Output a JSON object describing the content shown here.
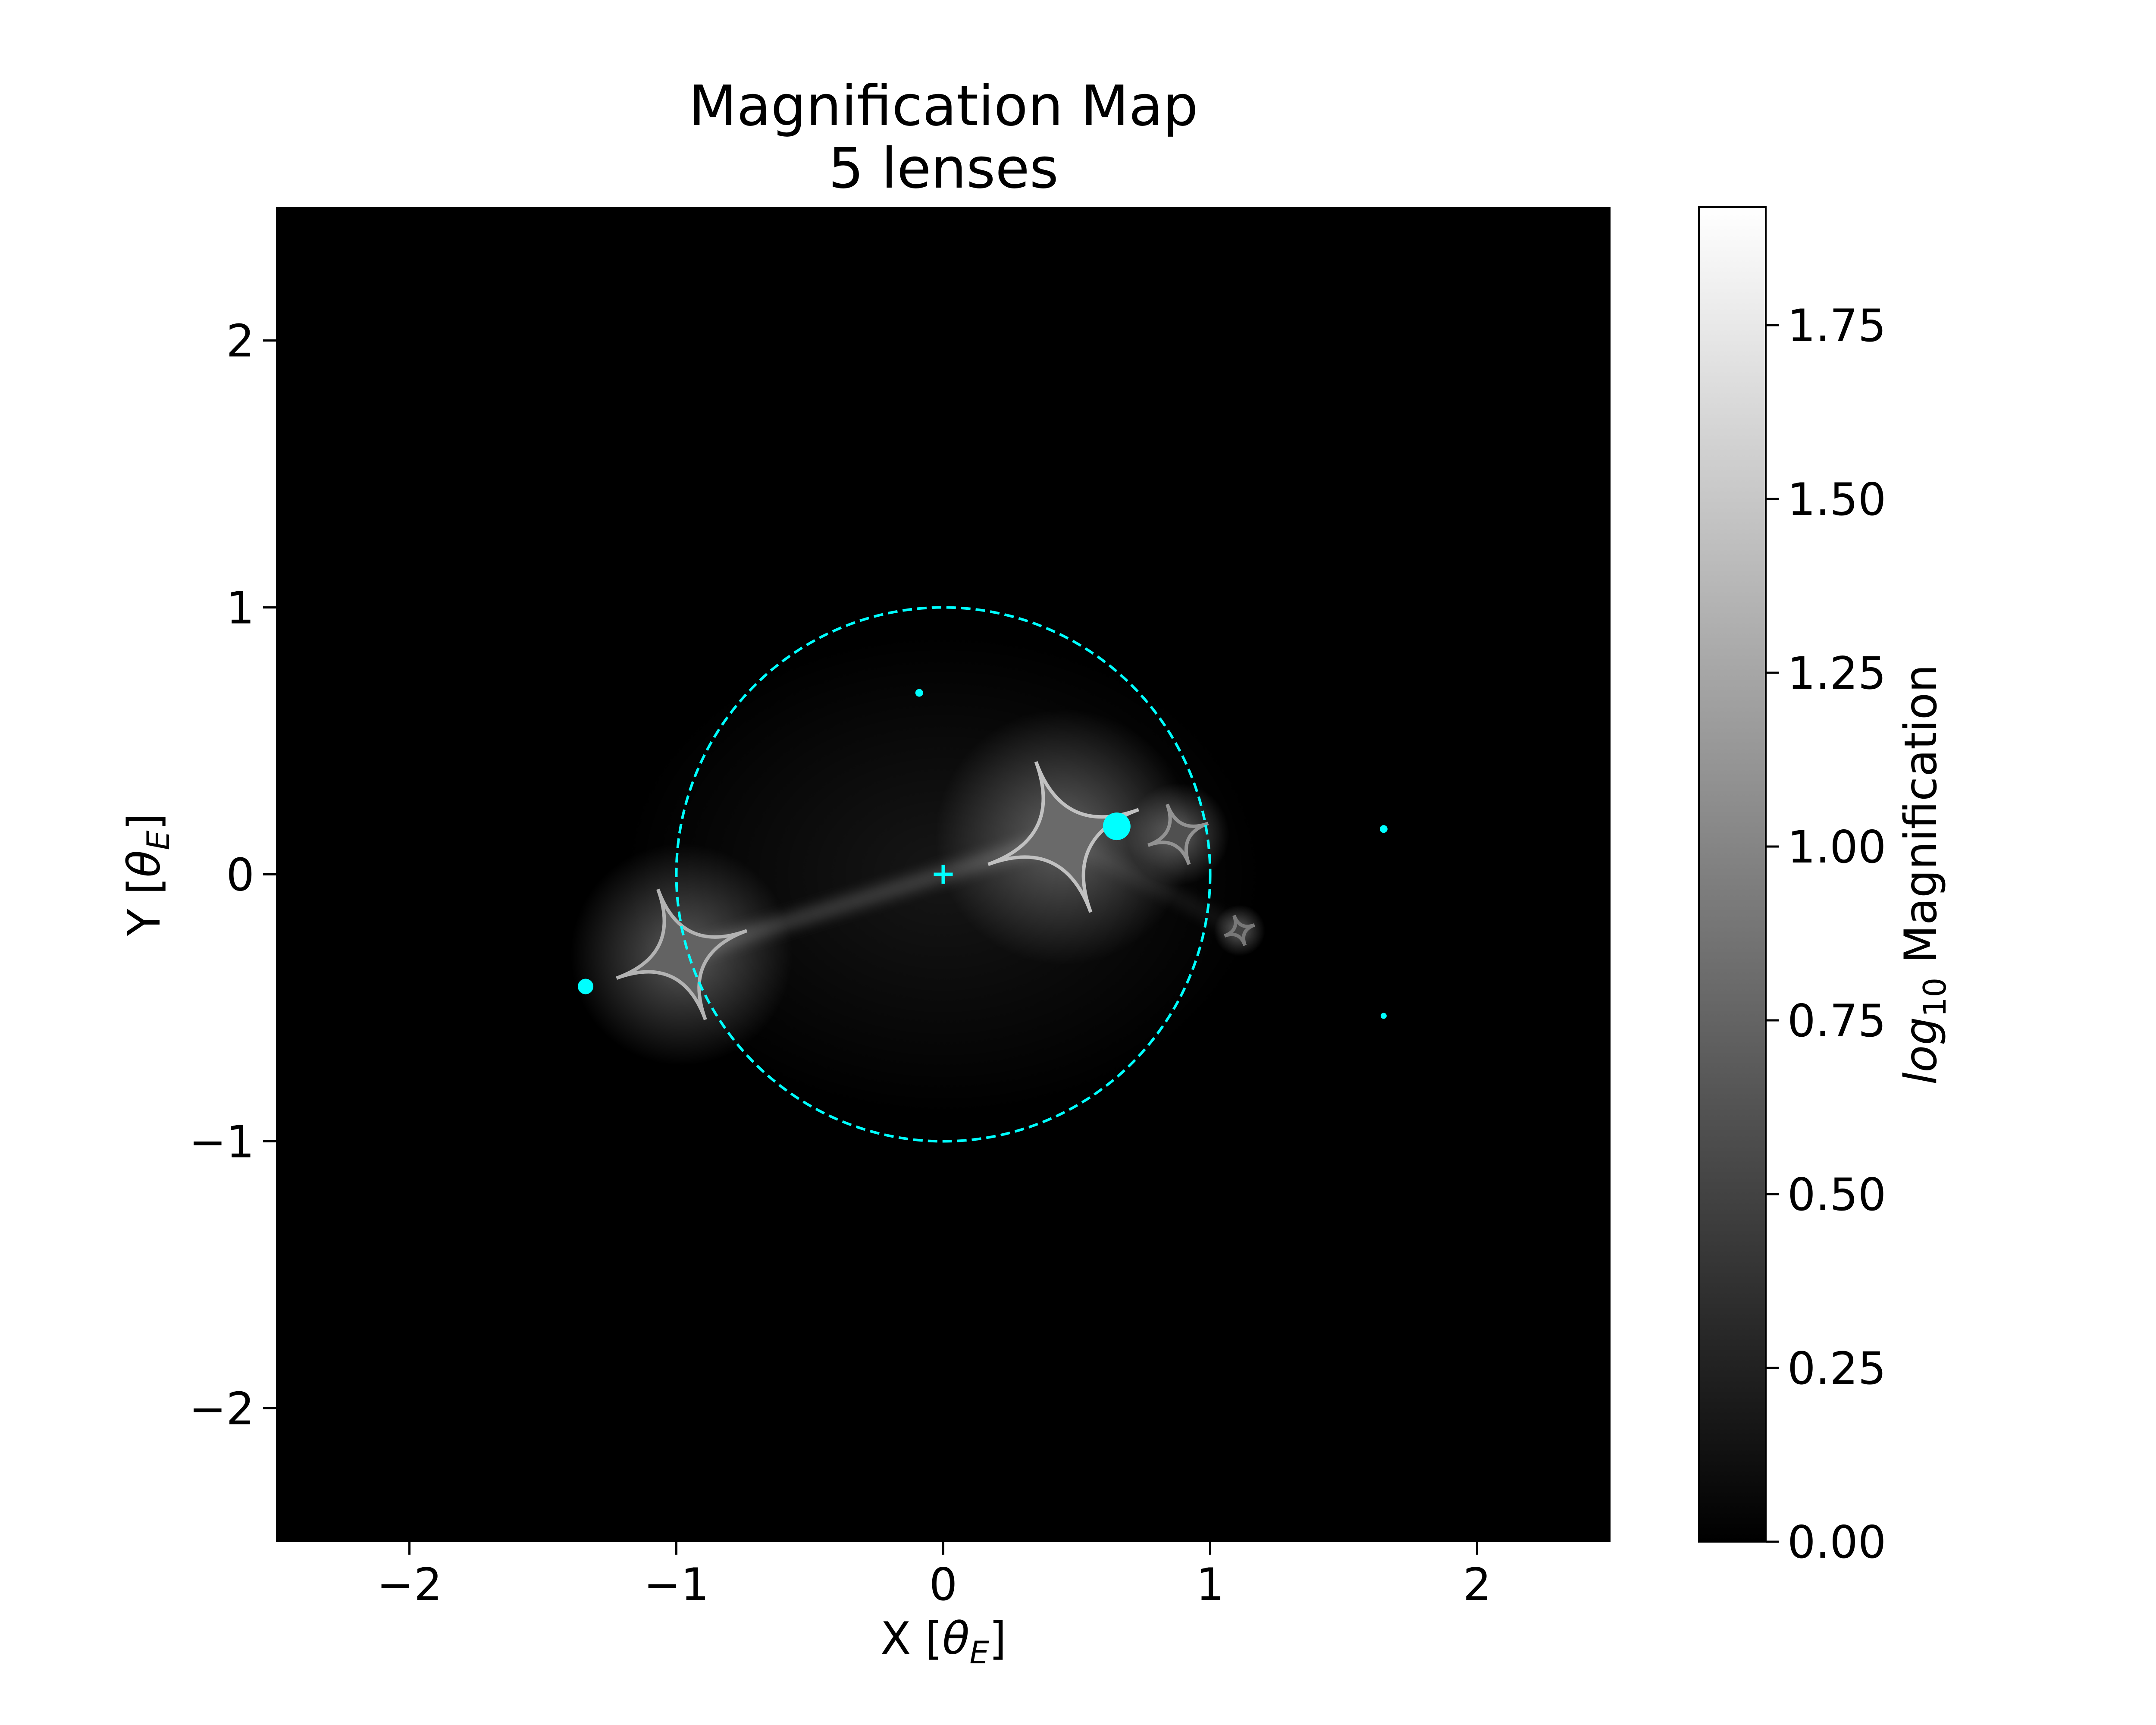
{
  "chart_data": {
    "type": "heatmap",
    "title": "Magnification Map",
    "subtitle": "5 lenses",
    "xlabel": "X [θ_E]",
    "ylabel": "Y [θ_E]",
    "xlim": [
      -2.5,
      2.5
    ],
    "ylim": [
      -2.5,
      2.5
    ],
    "x_ticks": [
      -2,
      -1,
      0,
      1,
      2
    ],
    "x_tick_labels": [
      "−2",
      "−1",
      "0",
      "1",
      "2"
    ],
    "y_ticks": [
      -2,
      -1,
      0,
      1,
      2
    ],
    "y_tick_labels": [
      "−2",
      "−1",
      "0",
      "1",
      "2"
    ],
    "grid": false,
    "colormap": "gray",
    "colorbar": {
      "label": "log10 Magnification",
      "range": [
        0,
        1.92
      ],
      "ticks": [
        0,
        0.25,
        0.5,
        0.75,
        1.0,
        1.25,
        1.5,
        1.75
      ],
      "tick_labels": [
        "0.00",
        "0.25",
        "0.50",
        "0.75",
        "1.00",
        "1.25",
        "1.50",
        "1.75"
      ]
    },
    "einstein_ring": {
      "center": [
        0,
        0
      ],
      "radius": 1,
      "style": "dashed",
      "color": "#00ffff"
    },
    "center_marker": {
      "x": 0,
      "y": 0,
      "marker": "+"
    },
    "lenses": [
      {
        "x": -1.34,
        "y": -0.42
      },
      {
        "x": -0.09,
        "y": 0.68
      },
      {
        "x": 0.65,
        "y": 0.18
      },
      {
        "x": 1.65,
        "y": 0.17
      },
      {
        "x": 1.65,
        "y": -0.53
      }
    ],
    "caustics": [
      {
        "x": -0.98,
        "y": -0.3,
        "size": 0.26,
        "brightness": 1.35
      },
      {
        "x": 0.45,
        "y": 0.14,
        "size": 0.3,
        "brightness": 1.45
      },
      {
        "x": 0.88,
        "y": 0.15,
        "size": 0.12,
        "brightness": 1.1
      },
      {
        "x": 1.11,
        "y": -0.21,
        "size": 0.06,
        "brightness": 0.9
      }
    ],
    "colors": {
      "marker": "#00ffff",
      "background": "#000000"
    }
  }
}
